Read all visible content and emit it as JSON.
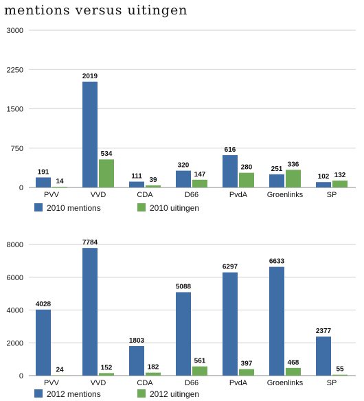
{
  "title": "mentions versus uitingen",
  "chart_data": [
    {
      "type": "bar",
      "categories": [
        "PVV",
        "VVD",
        "CDA",
        "D66",
        "PvdA",
        "Groenlinks",
        "SP"
      ],
      "series": [
        {
          "name": "2010 mentions",
          "values": [
            191,
            2019,
            111,
            320,
            616,
            251,
            102
          ],
          "color": "#3f6da5"
        },
        {
          "name": "2010 uitingen",
          "values": [
            14,
            534,
            39,
            147,
            280,
            336,
            132
          ],
          "color": "#6fab56"
        }
      ],
      "yticks": [
        0,
        750,
        1500,
        2250,
        3000
      ],
      "ylim": [
        0,
        3000
      ],
      "grid": true,
      "legend": "bottom-left"
    },
    {
      "type": "bar",
      "categories": [
        "PVV",
        "VVD",
        "CDA",
        "D66",
        "PvdA",
        "Groenlinks",
        "SP"
      ],
      "series": [
        {
          "name": "2012 mentions",
          "values": [
            4028,
            7784,
            1803,
            5088,
            6297,
            6633,
            2377
          ],
          "color": "#3f6da5"
        },
        {
          "name": "2012 uitingen",
          "values": [
            24,
            152,
            182,
            561,
            397,
            468,
            55
          ],
          "color": "#6fab56"
        }
      ],
      "yticks": [
        0,
        2000,
        4000,
        6000,
        8000
      ],
      "ylim": [
        0,
        8000
      ],
      "grid": true,
      "legend": "bottom-left"
    }
  ]
}
